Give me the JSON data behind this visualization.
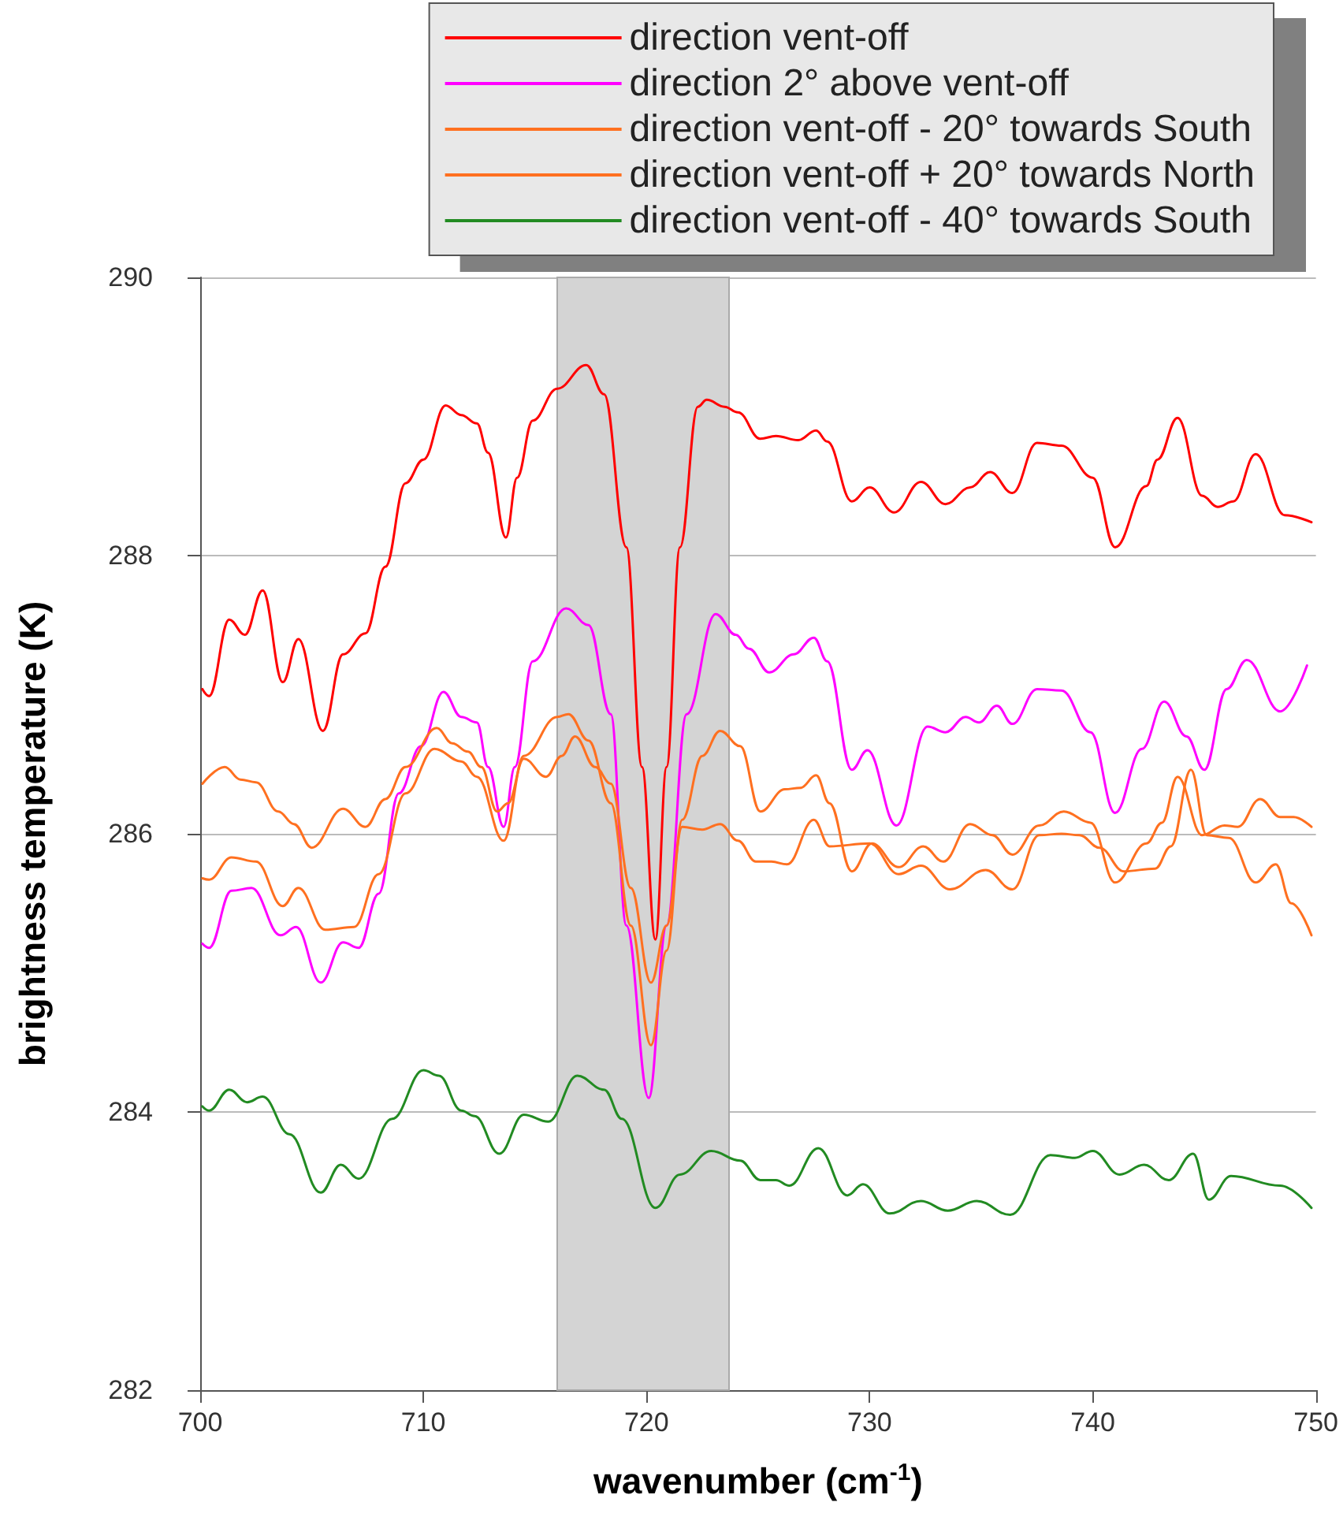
{
  "chart_data": {
    "type": "line",
    "xlabel": "wavenumber (cm$^{-1}$)",
    "ylabel": "brightness temperature (K)",
    "xlim": [
      700,
      750
    ],
    "xticks": [
      700,
      710,
      720,
      730,
      740,
      750
    ],
    "ylim": [
      282,
      290
    ],
    "yticks": [
      282,
      284,
      286,
      288,
      290
    ],
    "grid": "y",
    "legend": "top right",
    "marker": "none",
    "line_style": "solid",
    "bands": [
      {
        "axis": "x",
        "from": 716,
        "to": 723.7,
        "color": "#d4d4d4"
      }
    ],
    "series": [
      {
        "name": "direction vent-off",
        "color": "#ff0000",
        "x": [
          700.1,
          700.4,
          701.3,
          702.0,
          702.8,
          703.7,
          704.4,
          705.5,
          706.4,
          707.4,
          708.3,
          709.2,
          710.0,
          711.0,
          711.7,
          712.4,
          712.9,
          713.7,
          714.2,
          714.9,
          716.0,
          717.3,
          718.1,
          719.1,
          719.8,
          720.4,
          720.9,
          721.5,
          722.3,
          722.7,
          723.5,
          724.1,
          725.1,
          725.8,
          726.8,
          727.6,
          728.1,
          729.2,
          730.0,
          731.1,
          732.3,
          733.4,
          734.5,
          735.4,
          736.4,
          737.5,
          738.6,
          740.0,
          741.0,
          742.4,
          742.9,
          743.8,
          744.9,
          745.6,
          746.3,
          747.3,
          748.6,
          749.8
        ],
        "values": [
          287.04,
          286.99,
          287.54,
          287.43,
          287.75,
          287.09,
          287.4,
          286.74,
          287.29,
          287.44,
          287.92,
          288.52,
          288.69,
          289.08,
          289.01,
          288.95,
          288.74,
          288.13,
          288.56,
          288.97,
          289.2,
          289.37,
          289.16,
          288.06,
          286.48,
          285.24,
          286.48,
          288.06,
          289.07,
          289.12,
          289.07,
          289.03,
          288.84,
          288.86,
          288.83,
          288.9,
          288.82,
          288.39,
          288.49,
          288.31,
          288.53,
          288.37,
          288.49,
          288.6,
          288.45,
          288.81,
          288.79,
          288.56,
          288.06,
          288.5,
          288.69,
          288.99,
          288.43,
          288.35,
          288.39,
          288.73,
          288.29,
          288.24
        ]
      },
      {
        "name": "direction 2° above vent-off",
        "color": "#ff00ff",
        "x": [
          700.1,
          700.4,
          701.4,
          702.3,
          703.6,
          704.3,
          705.4,
          706.4,
          707.1,
          708.0,
          708.9,
          709.9,
          710.9,
          711.7,
          712.4,
          712.9,
          713.6,
          714.1,
          714.9,
          716.4,
          717.4,
          718.4,
          719.1,
          720.1,
          720.9,
          721.8,
          723.1,
          724.0,
          724.6,
          725.5,
          726.6,
          727.5,
          728.1,
          729.2,
          729.9,
          731.2,
          732.6,
          733.4,
          734.3,
          734.9,
          735.7,
          736.4,
          737.5,
          738.6,
          739.9,
          741.0,
          742.2,
          743.2,
          744.2,
          745.0,
          746.0,
          746.9,
          748.4,
          749.6
        ],
        "values": [
          285.21,
          285.18,
          285.59,
          285.61,
          285.27,
          285.33,
          284.93,
          285.22,
          285.18,
          285.57,
          286.29,
          286.63,
          287.02,
          286.84,
          286.8,
          286.48,
          286.05,
          286.48,
          287.24,
          287.62,
          287.5,
          286.86,
          285.34,
          284.1,
          285.34,
          286.86,
          287.58,
          287.43,
          287.33,
          287.16,
          287.29,
          287.41,
          287.24,
          286.46,
          286.6,
          286.06,
          286.77,
          286.73,
          286.84,
          286.8,
          286.92,
          286.79,
          287.04,
          287.03,
          286.73,
          286.15,
          286.61,
          286.95,
          286.7,
          286.46,
          287.04,
          287.25,
          286.88,
          287.21
        ]
      },
      {
        "name": "direction vent-off - 20° towards South",
        "color": "#ff7020",
        "x": [
          700.1,
          701.1,
          701.8,
          702.5,
          703.5,
          704.2,
          705.0,
          706.4,
          707.4,
          708.3,
          709.2,
          710.6,
          711.3,
          712.0,
          712.6,
          713.3,
          713.8,
          714.5,
          715.5,
          716.2,
          716.8,
          717.7,
          718.4,
          719.3,
          720.2,
          720.9,
          721.6,
          722.5,
          723.3,
          724.1,
          724.9,
          725.6,
          726.3,
          727.5,
          728.2,
          730.0,
          731.3,
          732.3,
          733.6,
          735.2,
          736.4,
          737.6,
          738.6,
          739.4,
          740.3,
          741.4,
          742.8,
          743.5,
          744.4,
          745.1,
          746.1,
          747.3,
          748.2,
          748.9,
          749.8
        ],
        "values": [
          286.36,
          286.48,
          286.39,
          286.37,
          286.16,
          286.07,
          285.9,
          286.18,
          286.05,
          286.25,
          286.48,
          286.76,
          286.65,
          286.59,
          286.48,
          286.16,
          286.22,
          286.54,
          286.41,
          286.56,
          286.7,
          286.48,
          286.36,
          285.61,
          284.93,
          285.34,
          286.05,
          286.03,
          286.07,
          285.95,
          285.8,
          285.8,
          285.78,
          286.1,
          285.91,
          285.93,
          285.71,
          285.77,
          285.6,
          285.74,
          285.6,
          285.99,
          286.0,
          285.99,
          285.9,
          285.73,
          285.75,
          285.91,
          286.46,
          285.99,
          285.97,
          285.65,
          285.78,
          285.5,
          285.27
        ]
      },
      {
        "name": "direction vent-off + 20° towards North",
        "color": "#ff7020",
        "x": [
          700.1,
          700.4,
          701.4,
          702.5,
          703.7,
          704.4,
          705.6,
          706.9,
          708.0,
          709.2,
          710.5,
          711.7,
          712.4,
          713.6,
          714.5,
          716.0,
          716.5,
          717.4,
          718.4,
          719.3,
          720.2,
          720.9,
          721.6,
          722.5,
          723.3,
          724.2,
          725.1,
          726.2,
          726.9,
          727.6,
          728.2,
          729.2,
          730.1,
          731.3,
          732.4,
          733.3,
          734.5,
          735.5,
          736.4,
          737.6,
          738.7,
          739.9,
          741.0,
          742.4,
          743.1,
          743.8,
          744.9,
          745.9,
          746.5,
          747.5,
          748.4,
          749.0,
          749.8
        ],
        "values": [
          285.68,
          285.67,
          285.83,
          285.8,
          285.48,
          285.61,
          285.31,
          285.33,
          285.71,
          286.29,
          286.61,
          286.52,
          286.41,
          285.95,
          286.56,
          286.84,
          286.86,
          286.67,
          286.22,
          285.34,
          284.48,
          285.16,
          286.1,
          286.56,
          286.74,
          286.63,
          286.16,
          286.32,
          286.33,
          286.42,
          286.22,
          285.73,
          285.93,
          285.76,
          285.91,
          285.8,
          286.07,
          285.99,
          285.85,
          286.06,
          286.16,
          286.08,
          285.65,
          285.93,
          286.08,
          286.41,
          285.99,
          286.06,
          286.05,
          286.25,
          286.12,
          286.12,
          286.05
        ]
      },
      {
        "name": "direction vent-off - 40° towards South",
        "color": "#228b22",
        "x": [
          700.1,
          700.4,
          701.3,
          702.1,
          702.8,
          704.0,
          705.4,
          706.3,
          707.1,
          708.6,
          710.0,
          710.7,
          711.7,
          712.3,
          713.4,
          714.5,
          715.6,
          716.9,
          718.1,
          718.9,
          720.4,
          721.5,
          722.9,
          724.2,
          725.1,
          725.8,
          726.4,
          727.7,
          729.0,
          729.7,
          730.9,
          732.3,
          733.5,
          734.8,
          736.3,
          738.1,
          739.2,
          740.0,
          741.2,
          742.3,
          743.4,
          744.5,
          745.2,
          746.2,
          748.4,
          749.8
        ],
        "values": [
          284.04,
          284.01,
          284.16,
          284.07,
          284.11,
          283.84,
          283.42,
          283.62,
          283.52,
          283.95,
          284.3,
          284.26,
          284.01,
          283.97,
          283.7,
          283.98,
          283.93,
          284.26,
          284.16,
          283.95,
          283.31,
          283.55,
          283.72,
          283.65,
          283.51,
          283.51,
          283.47,
          283.74,
          283.4,
          283.48,
          283.27,
          283.36,
          283.29,
          283.36,
          283.26,
          283.69,
          283.67,
          283.72,
          283.55,
          283.62,
          283.51,
          283.7,
          283.37,
          283.54,
          283.47,
          283.31
        ]
      }
    ]
  }
}
